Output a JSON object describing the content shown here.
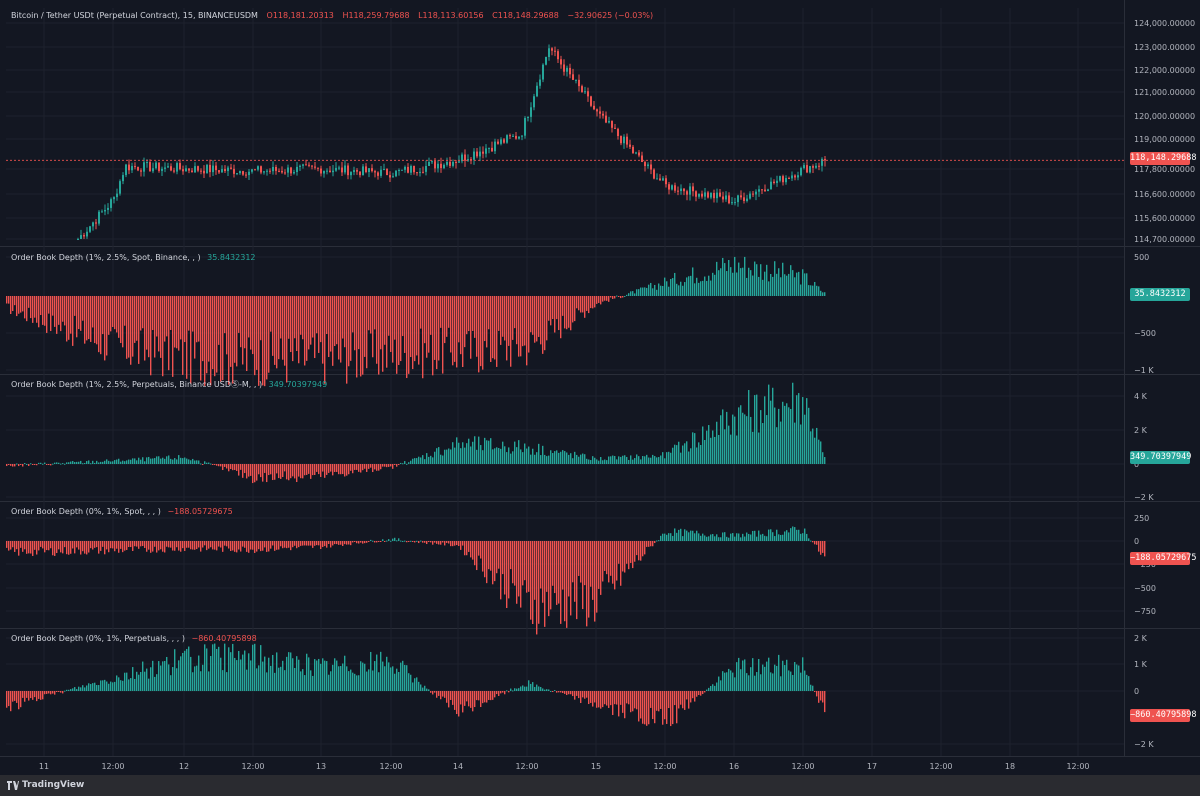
{
  "app": {
    "brand": "TradingView"
  },
  "colors": {
    "up": "#26a69a",
    "down": "#ef5350",
    "bg": "#131722",
    "grid": "#1e222d",
    "text": "#b2b5be"
  },
  "time_axis": {
    "labels": [
      "11",
      "12:00",
      "12",
      "12:00",
      "13",
      "12:00",
      "14",
      "12:00",
      "15",
      "12:00",
      "16",
      "12:00",
      "17",
      "12:00",
      "18",
      "12:00"
    ]
  },
  "main": {
    "title": "Bitcoin / Tether USDt (Perpetual Contract), 15, BINANCEUSDM",
    "ohlc": {
      "o": "O118,181.20313",
      "h": "H118,259.79688",
      "l": "L118,113.60156",
      "c": "C118,148.29688",
      "chg": "−32.90625 (−0.03%)"
    },
    "price_label": "118,148.29688",
    "y_ticks": [
      "124,000.00000",
      "123,000.00000",
      "122,000.00000",
      "121,000.00000",
      "120,000.00000",
      "119,000.00000",
      "117,800.00000",
      "116,600.00000",
      "115,600.00000",
      "114,700.00000"
    ]
  },
  "panes": [
    {
      "title": "Order Book Depth (1%, 2.5%, Spot, Binance, , )",
      "value": "35.8432312",
      "value_color": "up",
      "y_ticks": [
        "500",
        "−500",
        "−1 K"
      ]
    },
    {
      "title": "Order Book Depth (1%, 2.5%, Perpetuals, Binance USDⓈ-M, , )",
      "value": "349.70397949",
      "value_color": "up",
      "y_ticks": [
        "4 K",
        "2 K",
        "0",
        "−2 K"
      ]
    },
    {
      "title": "Order Book Depth (0%, 1%, Spot, , , )",
      "value": "−188.05729675",
      "value_color": "down",
      "y_ticks": [
        "250",
        "0",
        "−250",
        "−500",
        "−750"
      ]
    },
    {
      "title": "Order Book Depth (0%, 1%, Perpetuals, , , )",
      "value": "−860.40795898",
      "value_color": "down",
      "y_ticks": [
        "2 K",
        "1 K",
        "0",
        "−2 K"
      ]
    }
  ],
  "chart_data": [
    {
      "type": "line",
      "title": "Bitcoin / Tether USDt (Perpetual Contract), 15, BINANCEUSDM",
      "x": [
        "11",
        "11 12:00",
        "12",
        "12 12:00",
        "13",
        "13 12:00",
        "14",
        "14 12:00",
        "15",
        "15 12:00",
        "16",
        "16 06:00",
        "16 12:00",
        "16 14:00"
      ],
      "series": [
        {
          "values": [
            114700,
            116400,
            117900,
            117700,
            117800,
            117600,
            118200,
            119200,
            123000,
            120100,
            117000,
            116300,
            117800,
            118148
          ]
        }
      ],
      "ylim": [
        114700,
        124000
      ]
    },
    {
      "type": "bar",
      "title": "Order Book Depth (1%, 2.5%, Spot, Binance, , )",
      "x": [
        "11",
        "11 12:00",
        "12",
        "12 12:00",
        "13",
        "13 12:00",
        "14",
        "14 12:00",
        "15",
        "15 12:00",
        "16",
        "16 12:00",
        "16 14:00"
      ],
      "series": [
        {
          "values": [
            -150,
            -650,
            -800,
            -820,
            -800,
            -760,
            -720,
            -650,
            -100,
            180,
            420,
            250,
            36
          ]
        }
      ],
      "ylim": [
        -1000,
        500
      ]
    },
    {
      "type": "bar",
      "title": "Order Book Depth (1%, 2.5%, Perpetuals, Binance USDⓈ-M, , )",
      "x": [
        "11",
        "11 12:00",
        "12",
        "12 12:00",
        "13",
        "13 12:00",
        "14",
        "14 12:00",
        "15",
        "15 12:00",
        "16",
        "16 12:00",
        "16 14:00"
      ],
      "series": [
        {
          "values": [
            -100,
            200,
            400,
            -800,
            -700,
            -200,
            1200,
            1000,
            300,
            500,
            2800,
            3800,
            350
          ]
        }
      ],
      "ylim": [
        -2000,
        4000
      ]
    },
    {
      "type": "bar",
      "title": "Order Book Depth (0%, 1%, Spot, , , )",
      "x": [
        "11",
        "11 12:00",
        "12",
        "12 12:00",
        "13",
        "13 12:00",
        "14",
        "14 12:00",
        "15",
        "15 12:00",
        "16",
        "16 12:00",
        "16 14:00"
      ],
      "series": [
        {
          "values": [
            -120,
            -100,
            -80,
            -90,
            -60,
            20,
            -50,
            -700,
            -650,
            100,
            60,
            120,
            -188
          ]
        }
      ],
      "ylim": [
        -750,
        250
      ]
    },
    {
      "type": "bar",
      "title": "Order Book Depth (0%, 1%, Perpetuals, , , )",
      "x": [
        "11",
        "11 12:00",
        "12",
        "12 12:00",
        "13",
        "13 12:00",
        "14",
        "14 12:00",
        "15",
        "15 12:00",
        "16",
        "16 12:00",
        "16 14:00"
      ],
      "series": [
        {
          "values": [
            -600,
            500,
            1200,
            1300,
            900,
            1100,
            -800,
            300,
            -500,
            -1200,
            900,
            1000,
            -860
          ]
        }
      ],
      "ylim": [
        -2000,
        2000
      ]
    }
  ]
}
